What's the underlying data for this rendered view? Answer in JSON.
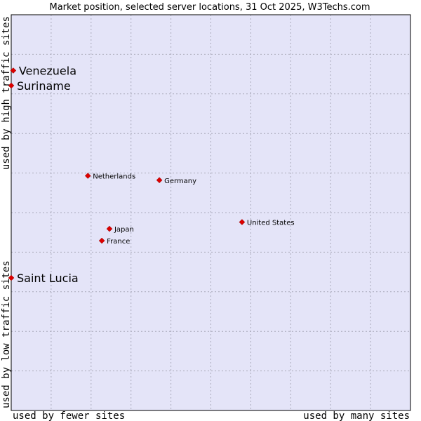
{
  "chart_data": {
    "type": "scatter",
    "title": "Market position, selected server locations, 31 Oct 2025, W3Techs.com",
    "xlabel_left": "used by fewer sites",
    "xlabel_right": "used by many sites",
    "ylabel_top": "used by high traffic sites",
    "ylabel_bottom": "used by low traffic sites",
    "xlim": [
      0,
      100
    ],
    "ylim": [
      0,
      100
    ],
    "grid": true,
    "grid_divisions": {
      "x": 10,
      "y": 10
    },
    "colors": {
      "plot_background": "#e4e4f8",
      "grid": "#aaaabb",
      "point": "#dd0000",
      "frame": "#000000"
    },
    "points": [
      {
        "name": "Venezuela",
        "x": 0.5,
        "y": 85.9,
        "size": "large"
      },
      {
        "name": "Suriname",
        "x": 0.0,
        "y": 82.1,
        "size": "large"
      },
      {
        "name": "Netherlands",
        "x": 19.2,
        "y": 59.3,
        "size": "small"
      },
      {
        "name": "Germany",
        "x": 37.1,
        "y": 58.2,
        "size": "small"
      },
      {
        "name": "United States",
        "x": 57.8,
        "y": 47.6,
        "size": "small"
      },
      {
        "name": "Japan",
        "x": 24.6,
        "y": 45.9,
        "size": "small"
      },
      {
        "name": "France",
        "x": 22.7,
        "y": 42.9,
        "size": "small"
      },
      {
        "name": "Saint Lucia",
        "x": 0.0,
        "y": 33.5,
        "size": "large"
      }
    ]
  }
}
